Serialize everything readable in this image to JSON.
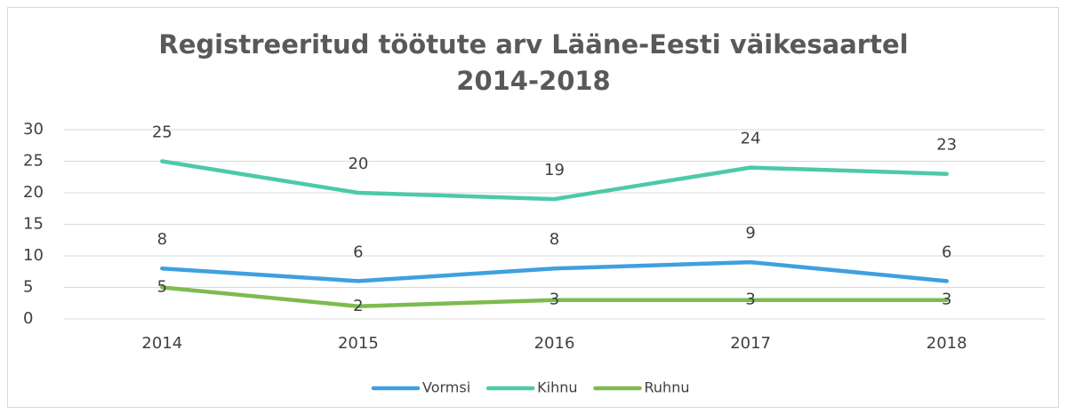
{
  "chart_data": {
    "type": "line",
    "title": "Registreeritud töötute arv Lääne-Eesti väikesaartel 2014-2018",
    "categories": [
      "2014",
      "2015",
      "2016",
      "2017",
      "2018"
    ],
    "series": [
      {
        "name": "Vormsi",
        "color": "#3fa0e0",
        "values": [
          8,
          6,
          8,
          9,
          6
        ]
      },
      {
        "name": "Kihnu",
        "color": "#4dc9a8",
        "values": [
          25,
          20,
          19,
          24,
          23
        ]
      },
      {
        "name": "Ruhnu",
        "color": "#7dbb4e",
        "values": [
          5,
          2,
          3,
          3,
          3
        ]
      }
    ],
    "ylim": [
      0,
      30
    ],
    "yticks": [
      0,
      5,
      10,
      15,
      20,
      25,
      30
    ],
    "grid": true,
    "legend": "bottom"
  }
}
